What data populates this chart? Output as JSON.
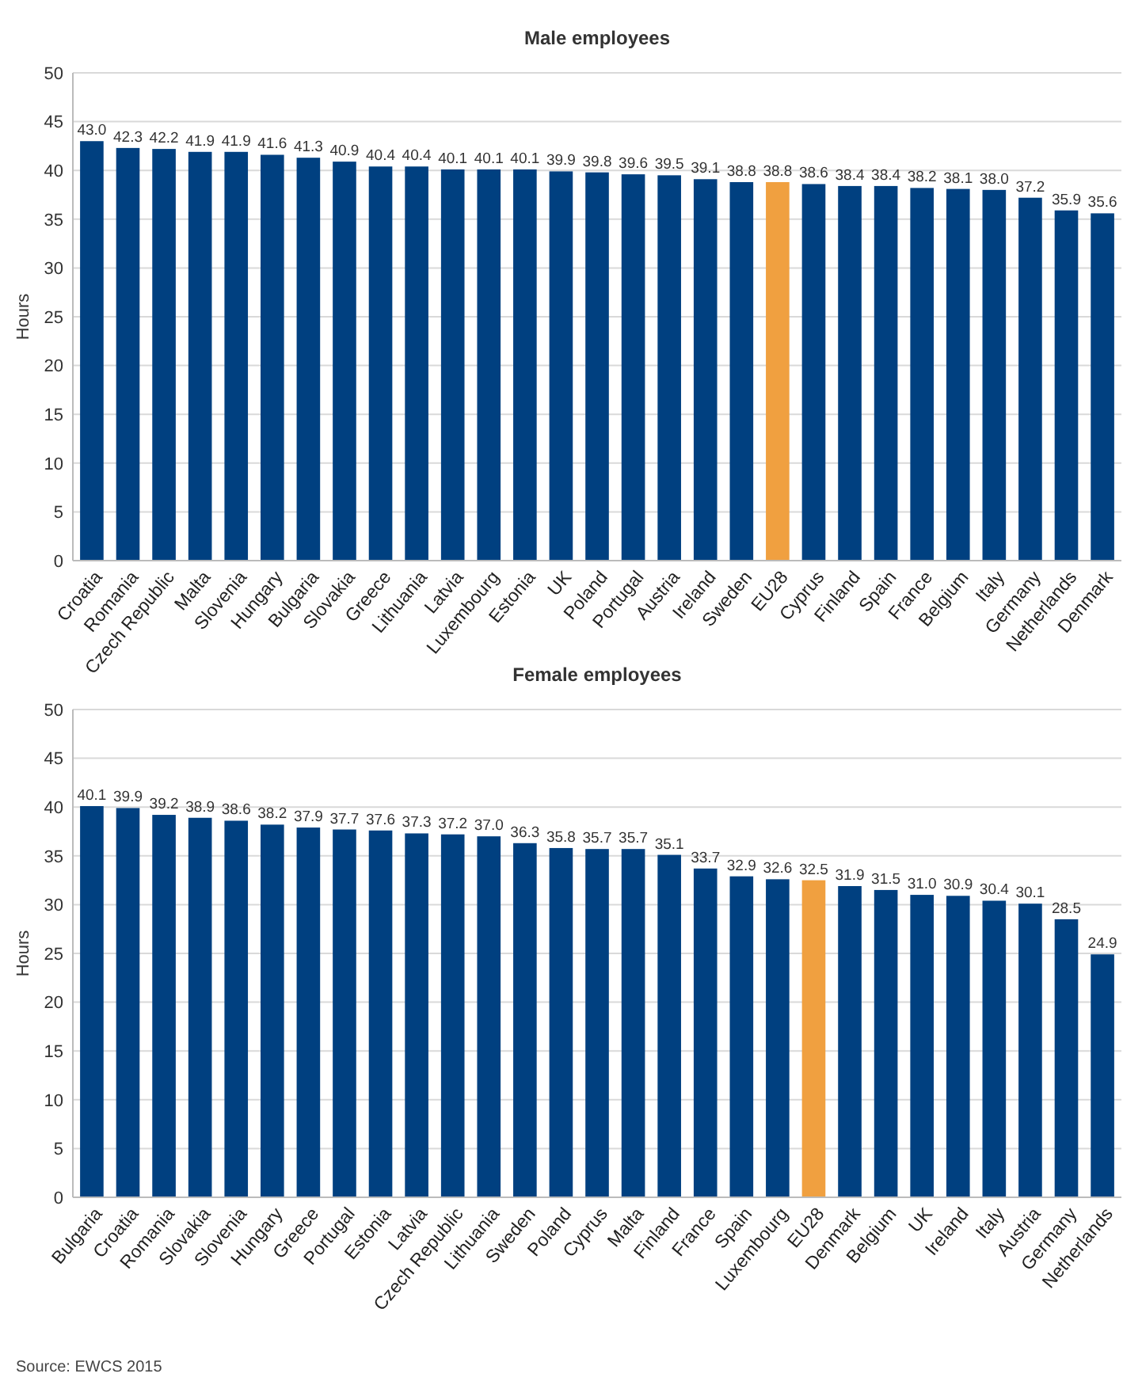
{
  "chart_data": [
    {
      "type": "bar",
      "title": "Male employees",
      "ylabel": "Hours",
      "categories": [
        "Croatia",
        "Romania",
        "Czech Republic",
        "Malta",
        "Slovenia",
        "Hungary",
        "Bulgaria",
        "Slovakia",
        "Greece",
        "Lithuania",
        "Latvia",
        "Luxembourg",
        "Estonia",
        "UK",
        "Poland",
        "Portugal",
        "Austria",
        "Ireland",
        "Sweden",
        "EU28",
        "Cyprus",
        "Finland",
        "Spain",
        "France",
        "Belgium",
        "Italy",
        "Germany",
        "Netherlands",
        "Denmark"
      ],
      "values": [
        43.0,
        42.3,
        42.2,
        41.9,
        41.9,
        41.6,
        41.3,
        40.9,
        40.4,
        40.4,
        40.1,
        40.1,
        40.1,
        39.9,
        39.8,
        39.6,
        39.5,
        39.1,
        38.8,
        38.8,
        38.6,
        38.4,
        38.4,
        38.2,
        38.1,
        38.0,
        37.2,
        35.9,
        35.6
      ],
      "colors": [
        "#004080",
        "#004080",
        "#004080",
        "#004080",
        "#004080",
        "#004080",
        "#004080",
        "#004080",
        "#004080",
        "#004080",
        "#004080",
        "#004080",
        "#004080",
        "#004080",
        "#004080",
        "#004080",
        "#004080",
        "#004080",
        "#004080",
        "#f0a040",
        "#004080",
        "#004080",
        "#004080",
        "#004080",
        "#004080",
        "#004080",
        "#004080",
        "#004080",
        "#004080"
      ],
      "ylim": [
        0,
        50
      ],
      "yticks": [
        0,
        5,
        10,
        15,
        20,
        25,
        30,
        35,
        40,
        45,
        50
      ],
      "grid": "y",
      "value_labels": [
        "43.0",
        "42.3",
        "42.2",
        "41.9",
        "41.9",
        "41.6",
        "41.3",
        "40.9",
        "40.4",
        "40.4",
        "40.1",
        "40.1",
        "40.1",
        "39.9",
        "39.8",
        "39.6",
        "39.5",
        "39.1",
        "38.8",
        "38.8",
        "38.6",
        "38.4",
        "38.4",
        "38.2",
        "38.1",
        "38.0",
        "37.2",
        "35.9",
        "35.6"
      ]
    },
    {
      "type": "bar",
      "title": "Female employees",
      "ylabel": "Hours",
      "categories": [
        "Bulgaria",
        "Croatia",
        "Romania",
        "Slovakia",
        "Slovenia",
        "Hungary",
        "Greece",
        "Portugal",
        "Estonia",
        "Latvia",
        "Czech Republic",
        "Lithuania",
        "Sweden",
        "Poland",
        "Cyprus",
        "Malta",
        "Finland",
        "France",
        "Spain",
        "Luxembourg",
        "EU28",
        "Denmark",
        "Belgium",
        "UK",
        "Ireland",
        "Italy",
        "Austria",
        "Germany",
        "Netherlands"
      ],
      "values": [
        40.1,
        39.9,
        39.2,
        38.9,
        38.6,
        38.2,
        37.9,
        37.7,
        37.6,
        37.3,
        37.2,
        37.0,
        36.3,
        35.8,
        35.7,
        35.7,
        35.1,
        33.7,
        32.9,
        32.6,
        32.5,
        31.9,
        31.5,
        31.0,
        30.9,
        30.4,
        30.1,
        28.5,
        24.9
      ],
      "colors": [
        "#004080",
        "#004080",
        "#004080",
        "#004080",
        "#004080",
        "#004080",
        "#004080",
        "#004080",
        "#004080",
        "#004080",
        "#004080",
        "#004080",
        "#004080",
        "#004080",
        "#004080",
        "#004080",
        "#004080",
        "#004080",
        "#004080",
        "#004080",
        "#f0a040",
        "#004080",
        "#004080",
        "#004080",
        "#004080",
        "#004080",
        "#004080",
        "#004080",
        "#004080"
      ],
      "ylim": [
        0,
        50
      ],
      "yticks": [
        0,
        5,
        10,
        15,
        20,
        25,
        30,
        35,
        40,
        45,
        50
      ],
      "grid": "y",
      "value_labels": [
        "40.1",
        "39.9",
        "39.2",
        "38.9",
        "38.6",
        "38.2",
        "37.9",
        "37.7",
        "37.6",
        "37.3",
        "37.2",
        "37.0",
        "36.3",
        "35.8",
        "35.7",
        "35.7",
        "35.1",
        "33.7",
        "32.9",
        "32.6",
        "32.5",
        "31.9",
        "31.5",
        "31.0",
        "30.9",
        "30.4",
        "30.1",
        "28.5",
        "24.9"
      ],
      "annotations": [
        "Source: EWCS 2015"
      ]
    }
  ]
}
